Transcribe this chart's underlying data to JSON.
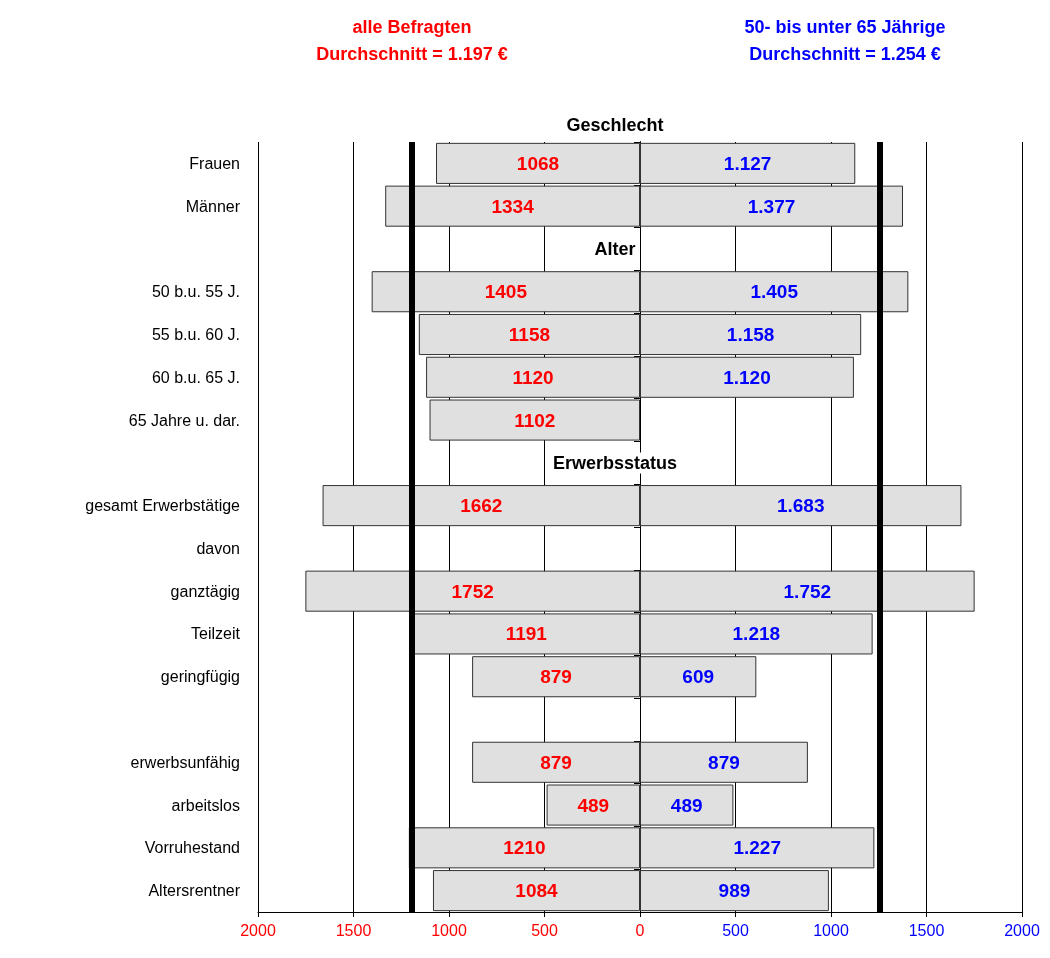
{
  "chart_data": [
    {
      "type": "bar",
      "orientation": "horizontal",
      "title": "alle Befragten\nDurchschnitt = 1.197 €",
      "categories": [
        "Frauen",
        "Männer",
        null,
        "50 b.u. 55 J.",
        "55 b.u. 60 J.",
        "60 b.u. 65 J.",
        "65 Jahre u. dar.",
        null,
        "gesamt Erwerbstätige",
        "davon",
        "ganztägig",
        "Teilzeit",
        "geringfügig",
        null,
        "erwerbsunfähig",
        "arbeitslos",
        "Vorruhestand",
        "Altersrentner"
      ],
      "values": [
        1068,
        1334,
        null,
        1405,
        1158,
        1120,
        1102,
        null,
        1662,
        null,
        1752,
        1191,
        879,
        null,
        879,
        489,
        1210,
        1084
      ],
      "color": "#e0e0e0",
      "data_labels": true,
      "xlim": [
        2000,
        0
      ],
      "xticks": [
        2000,
        1500,
        1000,
        500,
        0
      ],
      "grid": "x",
      "ref_lines": [
        {
          "axis": "x",
          "value": 1197,
          "color": "#000000"
        }
      ],
      "annotations": [
        "Geschlecht",
        "Alter",
        "Erwerbsstatus"
      ]
    },
    {
      "type": "bar",
      "orientation": "horizontal",
      "title": "50- bis unter 65 Jährige\nDurchschnitt = 1.254 €",
      "categories": [
        null,
        null,
        null,
        null,
        null,
        null,
        null,
        null,
        null,
        null,
        null,
        null,
        null,
        null,
        null,
        null,
        null,
        null
      ],
      "values": [
        1127,
        1377,
        null,
        1405,
        1158,
        1120,
        null,
        null,
        1683,
        null,
        1752,
        1218,
        609,
        null,
        879,
        489,
        1227,
        989
      ],
      "value_labels": [
        "1.127",
        "1.377",
        null,
        "1.405",
        "1.158",
        "1.120",
        null,
        null,
        "1.683",
        null,
        "1.752",
        "1.218",
        "609",
        null,
        "879",
        "489",
        "1.227",
        "989"
      ],
      "color": "#e0e0e0",
      "xlim": [
        0,
        2000
      ],
      "xticks": [
        {
          "value": 0,
          "label": null
        },
        500,
        1000,
        1500,
        2000
      ],
      "grid": "x",
      "ref_lines": [
        {
          "axis": "x",
          "value": 1254,
          "color": "#000000"
        }
      ],
      "tick_labels": "x"
    }
  ]
}
